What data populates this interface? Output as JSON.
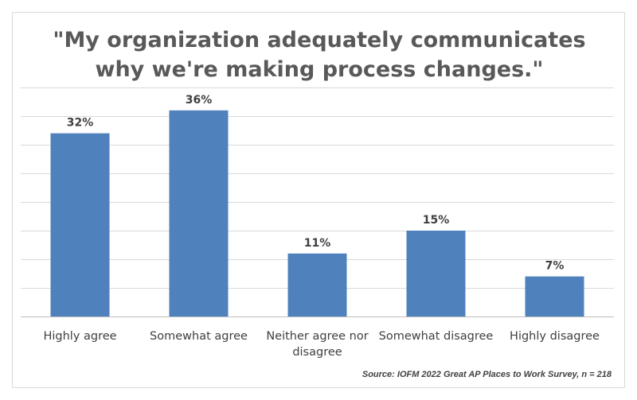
{
  "chart_data": {
    "type": "bar",
    "title_lines": [
      "\"My organization adequately communicates",
      "why we're making process changes.\""
    ],
    "categories": [
      [
        "Highly agree"
      ],
      [
        "Somewhat agree"
      ],
      [
        "Neither agree nor",
        "disagree"
      ],
      [
        "Somewhat disagree"
      ],
      [
        "Highly disagree"
      ]
    ],
    "values": [
      32,
      36,
      11,
      15,
      7
    ],
    "value_labels": [
      "32%",
      "36%",
      "11%",
      "15%",
      "7%"
    ],
    "ylim": [
      0,
      40
    ],
    "grid": true,
    "bar_color": "#4f81bd",
    "source": "Source: IOFM 2022 Great AP Places to Work Survey, n = 218"
  }
}
